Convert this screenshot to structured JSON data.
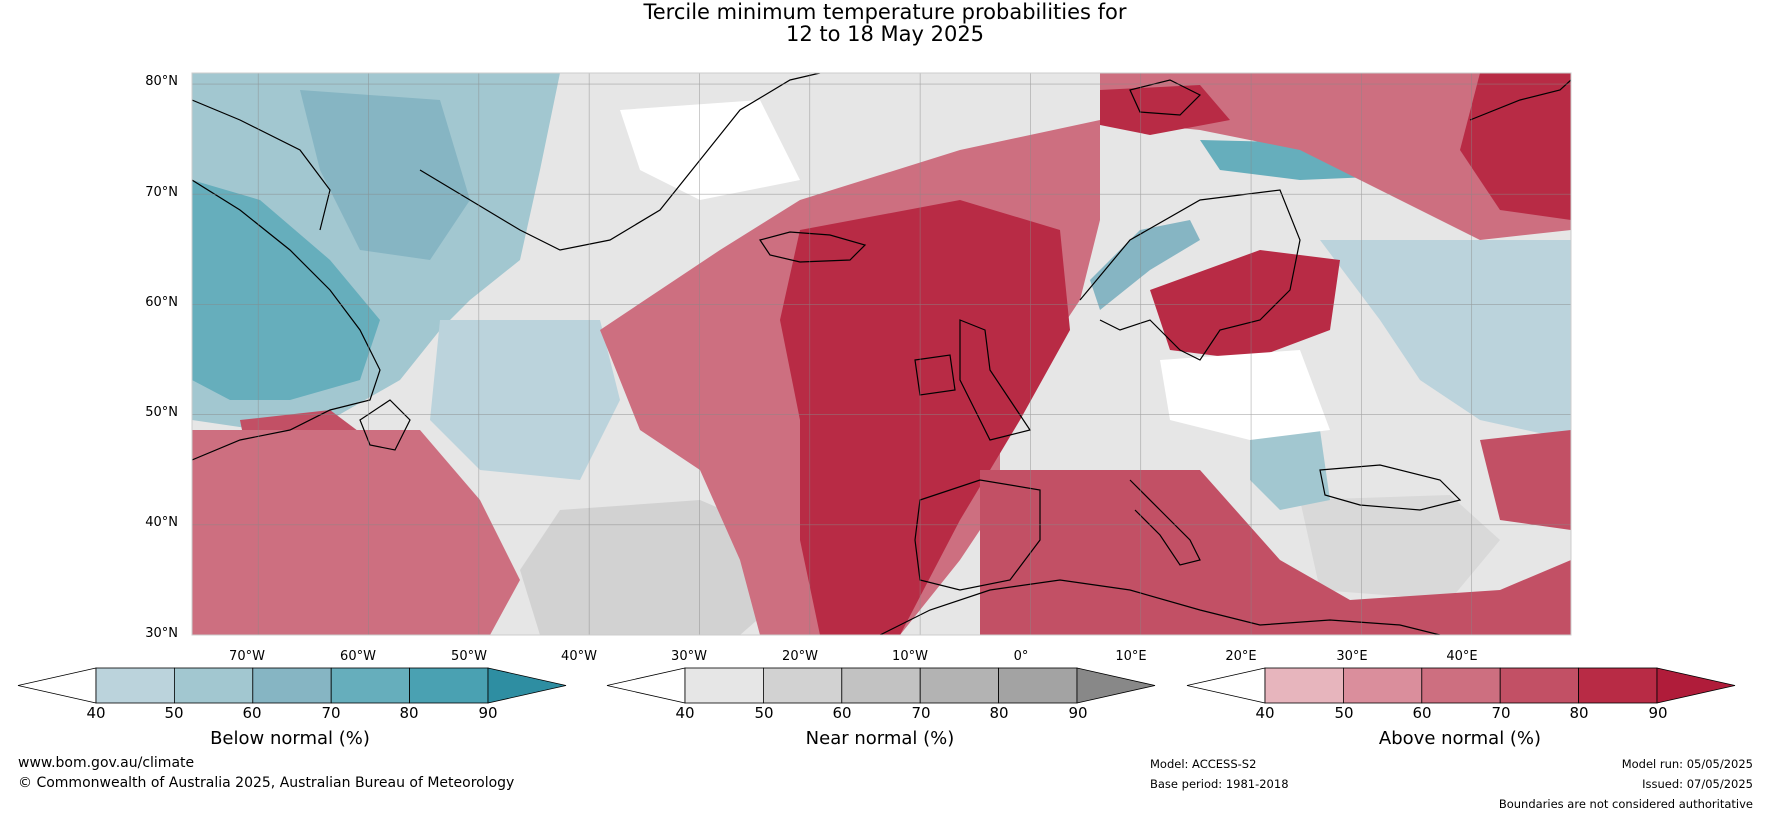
{
  "title": {
    "line1": "Tercile minimum temperature probabilities for",
    "line2": "12 to 18 May 2025"
  },
  "map": {
    "lat_labels": [
      "80°N",
      "70°N",
      "60°N",
      "50°N",
      "40°N",
      "30°N"
    ],
    "lon_labels": [
      "70°W",
      "60°W",
      "50°W",
      "40°W",
      "30°W",
      "20°W",
      "10°W",
      "0°",
      "10°E",
      "20°E",
      "30°E",
      "40°E"
    ],
    "lat_range": [
      30,
      81
    ],
    "lon_range": [
      -76,
      49
    ],
    "colors": {
      "land_outline": "#000000",
      "borders": "#808080",
      "grid": "#888888"
    }
  },
  "legends": {
    "below": {
      "title": "Below normal (%)",
      "ticks": [
        "40",
        "50",
        "60",
        "70",
        "80",
        "90"
      ],
      "colors": [
        "#ffffff",
        "#bbd3dc",
        "#a2c7d0",
        "#86b5c3",
        "#66aebc",
        "#4aa1b2",
        "#2e8ea2"
      ]
    },
    "near": {
      "title": "Near normal (%)",
      "ticks": [
        "40",
        "50",
        "60",
        "70",
        "80",
        "90"
      ],
      "colors": [
        "#ffffff",
        "#e6e6e6",
        "#d2d2d2",
        "#c2c2c2",
        "#b3b3b3",
        "#a3a3a3",
        "#888888"
      ]
    },
    "above": {
      "title": "Above normal (%)",
      "ticks": [
        "40",
        "50",
        "60",
        "70",
        "80",
        "90"
      ],
      "colors": [
        "#ffffff",
        "#e7b5bd",
        "#da8e9c",
        "#cd6f80",
        "#c25065",
        "#b82b45",
        "#b01c3a"
      ]
    }
  },
  "footer": {
    "website": "www.bom.gov.au/climate",
    "copyright": "© Commonwealth of Australia 2025, Australian Bureau of Meteorology",
    "model": "Model: ACCESS-S2",
    "base_period": "Base period: 1981-2018",
    "model_run": "Model run: 05/05/2025",
    "issued": "Issued: 07/05/2025",
    "disclaimer": "Boundaries are not considered authoritative"
  }
}
